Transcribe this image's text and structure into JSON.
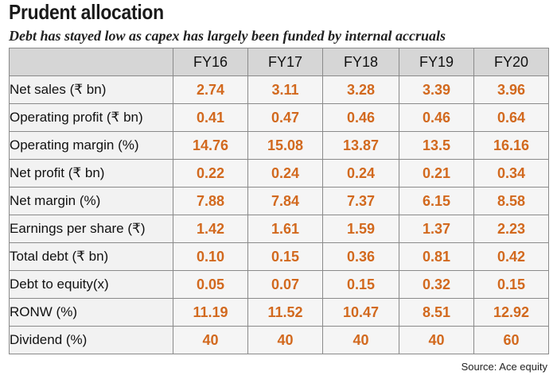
{
  "title": "Prudent allocation",
  "subtitle": "Debt has stayed low as capex has largely been funded by internal accruals",
  "source": "Source: Ace equity",
  "colors": {
    "value_text": "#d2691e",
    "header_bg": "#d6d6d6",
    "cell_bg": "#f5f5f5"
  },
  "chart_data": {
    "type": "table",
    "title": "Prudent allocation",
    "subtitle": "Debt has stayed low as capex has largely been funded by internal accruals",
    "columns": [
      "FY16",
      "FY17",
      "FY18",
      "FY19",
      "FY20"
    ],
    "rows": [
      {
        "label": "Net sales (₹ bn)",
        "values": [
          "2.74",
          "3.11",
          "3.28",
          "3.39",
          "3.96"
        ]
      },
      {
        "label": "Operating profit (₹ bn)",
        "values": [
          "0.41",
          "0.47",
          "0.46",
          "0.46",
          "0.64"
        ]
      },
      {
        "label": "Operating margin (%)",
        "values": [
          "14.76",
          "15.08",
          "13.87",
          "13.5",
          "16.16"
        ]
      },
      {
        "label": "Net profit  (₹ bn)",
        "values": [
          "0.22",
          "0.24",
          "0.24",
          "0.21",
          "0.34"
        ]
      },
      {
        "label": "Net margin (%)",
        "values": [
          "7.88",
          "7.84",
          "7.37",
          "6.15",
          "8.58"
        ]
      },
      {
        "label": "Earnings per share (₹)",
        "values": [
          "1.42",
          "1.61",
          "1.59",
          "1.37",
          "2.23"
        ]
      },
      {
        "label": "Total debt  (₹ bn)",
        "values": [
          "0.10",
          "0.15",
          "0.36",
          "0.81",
          "0.42"
        ]
      },
      {
        "label": "Debt to equity(x)",
        "values": [
          "0.05",
          "0.07",
          "0.15",
          "0.32",
          "0.15"
        ]
      },
      {
        "label": "RONW (%)",
        "values": [
          "11.19",
          "11.52",
          "10.47",
          "8.51",
          "12.92"
        ]
      },
      {
        "label": "Dividend (%)",
        "values": [
          "40",
          "40",
          "40",
          "40",
          "60"
        ]
      }
    ]
  }
}
